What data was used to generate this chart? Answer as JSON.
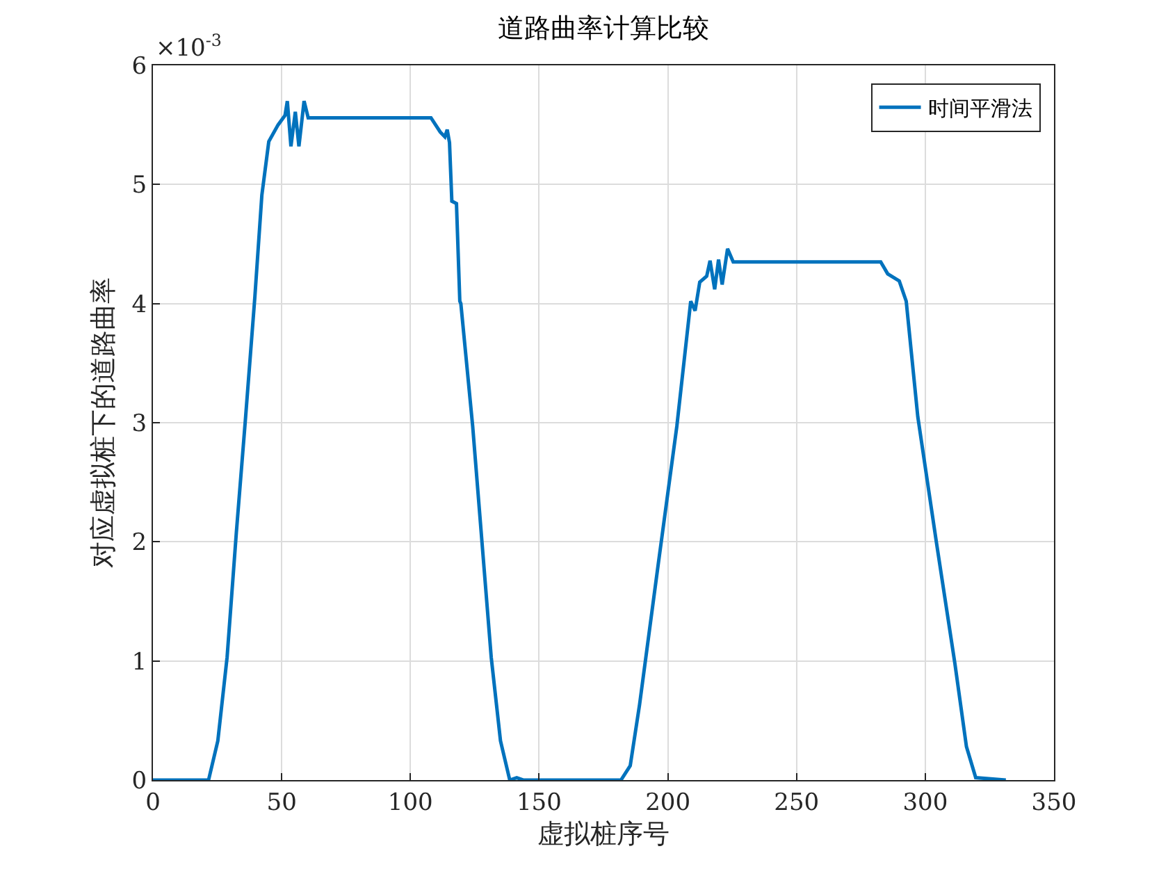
{
  "chart_data": {
    "type": "line",
    "title": "道路曲率计算比较",
    "xlabel": "虚拟桩序号",
    "ylabel": "对应虚拟桩下的道路曲率",
    "annotations": [
      "×10$^{-3}$"
    ],
    "series": [
      {
        "name": "时间平滑法",
        "color": "#0072bd",
        "x": [
          0,
          21.6,
          25.2,
          28.8,
          32.4,
          36.0,
          39.6,
          42.3,
          45.0,
          48.6,
          51.3,
          52.2,
          53.6,
          55.3,
          56.7,
          58.7,
          60.3,
          108.0,
          111.6,
          113.4,
          114.3,
          115.2,
          116.1,
          117.9,
          119.2,
          119.6,
          124.2,
          127.8,
          131.4,
          135.0,
          138.6,
          141.3,
          144.0,
          181.8,
          185.4,
          189.0,
          196.2,
          203.5,
          208.9,
          210.6,
          212.4,
          215.1,
          216.4,
          218.2,
          219.7,
          221.1,
          223.2,
          225.4,
          282.7,
          285.4,
          289.9,
          292.6,
          297.1,
          304.3,
          311.5,
          316.0,
          319.6,
          331.3
        ],
        "values": [
          0,
          0,
          0.33,
          1.03,
          2.08,
          3.05,
          4.06,
          4.91,
          5.36,
          5.5,
          5.58,
          5.7,
          5.32,
          5.61,
          5.32,
          5.7,
          5.56,
          5.56,
          5.44,
          5.4,
          5.46,
          5.35,
          4.86,
          4.84,
          4.02,
          4.0,
          2.97,
          2.0,
          1.03,
          0.33,
          0,
          0.02,
          0,
          0,
          0.12,
          0.63,
          1.8,
          2.97,
          4.02,
          3.94,
          4.18,
          4.23,
          4.36,
          4.12,
          4.37,
          4.16,
          4.46,
          4.35,
          4.35,
          4.25,
          4.19,
          4.02,
          3.05,
          2.0,
          0.98,
          0.28,
          0.02,
          0
        ]
      }
    ],
    "xlim": [
      0,
      350
    ],
    "xticks": [
      0,
      50,
      100,
      150,
      200,
      250,
      300,
      350
    ],
    "ylim": [
      0,
      6
    ],
    "yticks": [
      0,
      1,
      2,
      3,
      4,
      5,
      6
    ],
    "grid": true,
    "legend": "top right",
    "marker": "none",
    "line_style": "solid"
  }
}
